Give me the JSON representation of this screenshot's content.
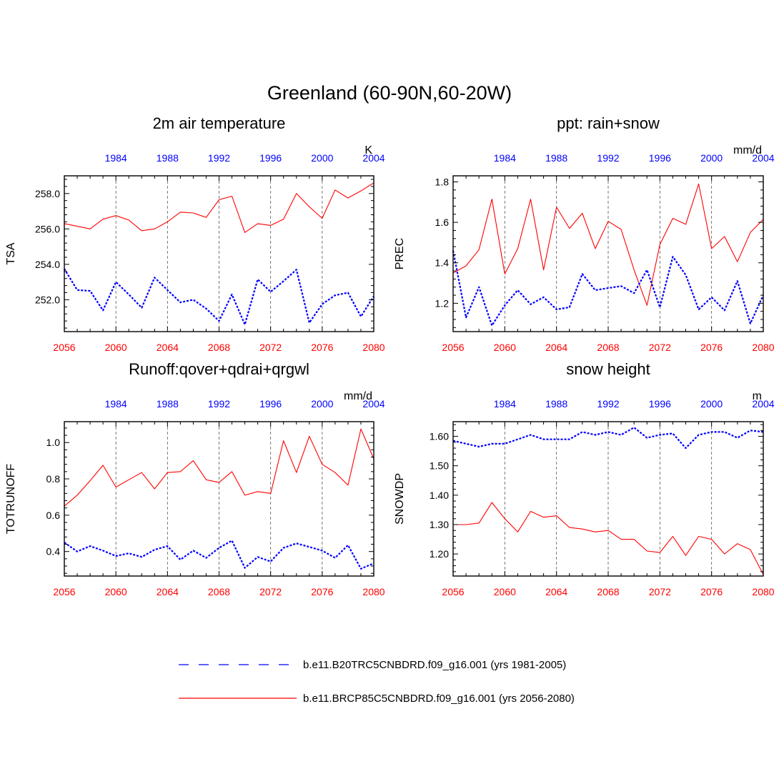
{
  "title": "Greenland (60-90N,60-20W)",
  "colors": {
    "future": "#ff0000",
    "hist": "#0000ff",
    "axis": "#000000"
  },
  "legend": [
    {
      "label": "b.e11.B20TRC5CNBDRD.f09_g16.001 (yrs 1981-2005)",
      "color": "#0000ff",
      "style": "dashed"
    },
    {
      "label": "b.e11.BRCP85C5CNBDRD.f09_g16.001 (yrs 2056-2080)",
      "color": "#ff0000",
      "style": "solid"
    }
  ],
  "chart_data": [
    {
      "type": "line",
      "title": "2m air temperature",
      "ylabel": "TSA",
      "units": "K",
      "xlim": [
        2056,
        2080
      ],
      "ylim": [
        250.2,
        259.0
      ],
      "yticks": [
        252.0,
        254.0,
        256.0,
        258.0
      ],
      "ytick_labels": [
        "252.0",
        "254.0",
        "256.0",
        "258.0"
      ],
      "ytick_minor": 0.4,
      "xticks": [
        2056,
        2060,
        2064,
        2068,
        2072,
        2076,
        2080
      ],
      "top_ticks": [
        1984,
        1988,
        1992,
        1996,
        2000,
        2004
      ],
      "top_offset": -76,
      "series": [
        {
          "name": "future",
          "x_start": 2056,
          "values": [
            256.3,
            256.15,
            256.0,
            256.55,
            256.75,
            256.5,
            255.9,
            256.0,
            256.4,
            256.95,
            256.9,
            256.65,
            257.65,
            257.85,
            255.8,
            256.3,
            256.2,
            256.55,
            258.0,
            257.25,
            256.6,
            258.2,
            257.75,
            258.15,
            258.6
          ]
        },
        {
          "name": "hist",
          "x_start": 2056,
          "values": [
            253.75,
            252.55,
            252.5,
            251.4,
            253.0,
            252.3,
            251.55,
            253.25,
            252.55,
            251.85,
            252.0,
            251.5,
            250.8,
            252.3,
            250.6,
            253.15,
            252.45,
            253.05,
            253.7,
            250.7,
            251.75,
            252.25,
            252.4,
            251.05,
            252.2
          ]
        }
      ]
    },
    {
      "type": "line",
      "title": "ppt: rain+snow",
      "ylabel": "PREC",
      "units": "mm/d",
      "xlim": [
        2056,
        2080
      ],
      "ylim": [
        1.06,
        1.83
      ],
      "yticks": [
        1.2,
        1.4,
        1.6,
        1.8
      ],
      "ytick_labels": [
        "1.2",
        "1.4",
        "1.6",
        "1.8"
      ],
      "ytick_minor": 0.04,
      "xticks": [
        2056,
        2060,
        2064,
        2068,
        2072,
        2076,
        2080
      ],
      "top_ticks": [
        1984,
        1988,
        1992,
        1996,
        2000,
        2004
      ],
      "top_offset": -76,
      "series": [
        {
          "name": "future",
          "x_start": 2056,
          "values": [
            1.35,
            1.385,
            1.465,
            1.715,
            1.345,
            1.47,
            1.715,
            1.365,
            1.675,
            1.57,
            1.645,
            1.47,
            1.605,
            1.565,
            1.365,
            1.19,
            1.49,
            1.62,
            1.59,
            1.79,
            1.47,
            1.53,
            1.405,
            1.55,
            1.615
          ]
        },
        {
          "name": "hist",
          "x_start": 2056,
          "values": [
            1.46,
            1.13,
            1.28,
            1.09,
            1.19,
            1.265,
            1.195,
            1.23,
            1.17,
            1.18,
            1.345,
            1.265,
            1.275,
            1.285,
            1.25,
            1.365,
            1.18,
            1.43,
            1.34,
            1.17,
            1.23,
            1.165,
            1.31,
            1.1,
            1.24
          ]
        }
      ]
    },
    {
      "type": "line",
      "title": "Runoff:qover+qdrai+qrgwl",
      "ylabel": "TOTRUNOFF",
      "units": "mm/d",
      "xlim": [
        2056,
        2080
      ],
      "ylim": [
        0.265,
        1.115
      ],
      "yticks": [
        0.4,
        0.6,
        0.8,
        1.0
      ],
      "ytick_labels": [
        "0.4",
        "0.6",
        "0.8",
        "1.0"
      ],
      "ytick_minor": 0.04,
      "xticks": [
        2056,
        2060,
        2064,
        2068,
        2072,
        2076,
        2080
      ],
      "top_ticks": [
        1984,
        1988,
        1992,
        1996,
        2000,
        2004
      ],
      "top_offset": -76,
      "series": [
        {
          "name": "future",
          "x_start": 2056,
          "values": [
            0.65,
            0.71,
            0.79,
            0.875,
            0.755,
            0.795,
            0.835,
            0.745,
            0.835,
            0.84,
            0.9,
            0.795,
            0.78,
            0.84,
            0.71,
            0.73,
            0.72,
            1.01,
            0.835,
            1.035,
            0.88,
            0.835,
            0.765,
            1.075,
            0.91
          ]
        },
        {
          "name": "hist",
          "x_start": 2056,
          "values": [
            0.45,
            0.4,
            0.43,
            0.405,
            0.375,
            0.39,
            0.37,
            0.41,
            0.43,
            0.355,
            0.405,
            0.365,
            0.42,
            0.46,
            0.31,
            0.37,
            0.345,
            0.42,
            0.445,
            0.425,
            0.405,
            0.365,
            0.435,
            0.305,
            0.335
          ]
        }
      ]
    },
    {
      "type": "line",
      "title": "snow height",
      "ylabel": "SNOWDP",
      "units": "m",
      "xlim": [
        2056,
        2080
      ],
      "ylim": [
        1.125,
        1.65
      ],
      "yticks": [
        1.2,
        1.3,
        1.4,
        1.5,
        1.6
      ],
      "ytick_labels": [
        "1.20",
        "1.30",
        "1.40",
        "1.50",
        "1.60"
      ],
      "ytick_minor": 0.02,
      "xticks": [
        2056,
        2060,
        2064,
        2068,
        2072,
        2076,
        2080
      ],
      "top_ticks": [
        1984,
        1988,
        1992,
        1996,
        2000,
        2004
      ],
      "top_offset": -76,
      "series": [
        {
          "name": "future",
          "x_start": 2056,
          "values": [
            1.3,
            1.3,
            1.305,
            1.375,
            1.32,
            1.275,
            1.345,
            1.325,
            1.33,
            1.29,
            1.285,
            1.275,
            1.28,
            1.25,
            1.25,
            1.21,
            1.205,
            1.26,
            1.195,
            1.26,
            1.25,
            1.2,
            1.235,
            1.215,
            1.13
          ]
        },
        {
          "name": "hist",
          "x_start": 2056,
          "values": [
            1.585,
            1.575,
            1.565,
            1.575,
            1.575,
            1.59,
            1.605,
            1.59,
            1.59,
            1.59,
            1.615,
            1.605,
            1.615,
            1.605,
            1.63,
            1.595,
            1.605,
            1.61,
            1.56,
            1.605,
            1.615,
            1.615,
            1.595,
            1.62,
            1.615
          ]
        }
      ]
    }
  ]
}
